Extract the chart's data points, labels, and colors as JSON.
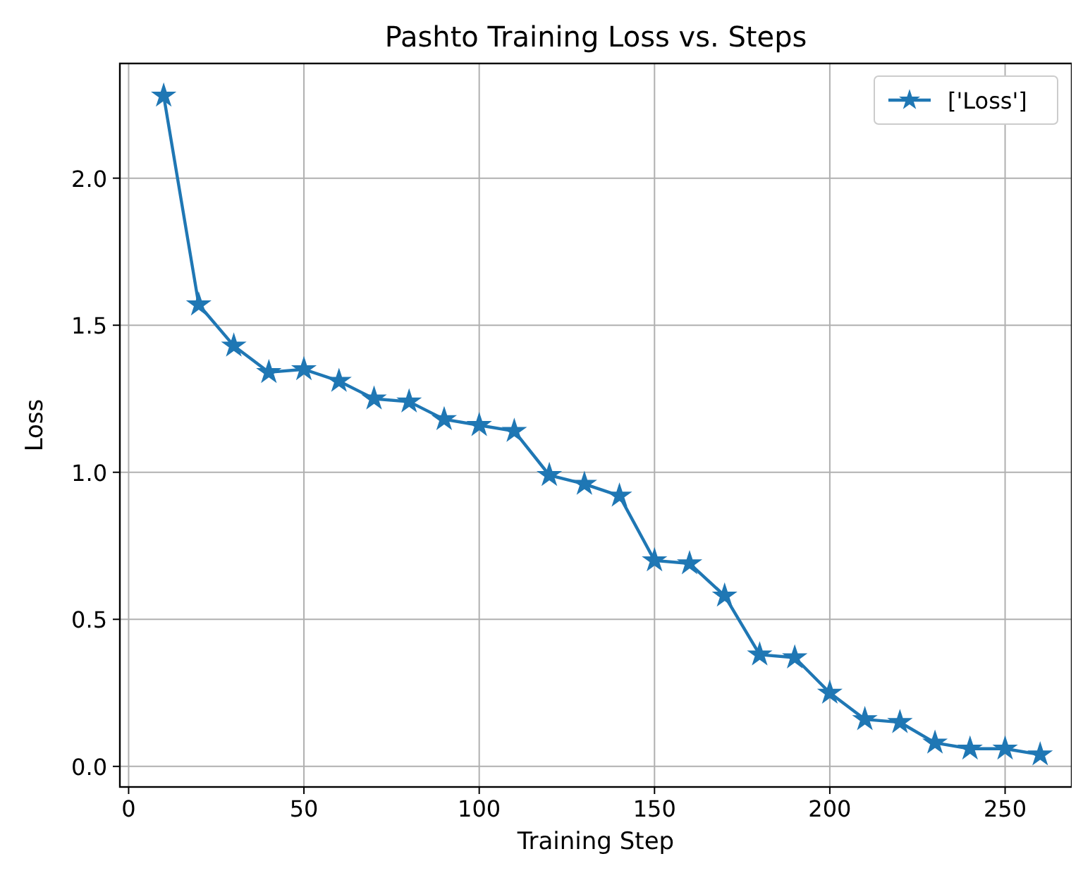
{
  "chart_data": {
    "type": "line",
    "title": "Pashto Training Loss vs. Steps",
    "xlabel": "Training Step",
    "ylabel": "Loss",
    "x": [
      10,
      20,
      30,
      40,
      50,
      60,
      70,
      80,
      90,
      100,
      110,
      120,
      130,
      140,
      150,
      160,
      170,
      180,
      190,
      200,
      210,
      220,
      230,
      240,
      250,
      260
    ],
    "series": [
      {
        "name": "['Loss']",
        "color": "#1f77b4",
        "values": [
          2.28,
          1.57,
          1.43,
          1.34,
          1.35,
          1.31,
          1.25,
          1.24,
          1.18,
          1.16,
          1.14,
          0.99,
          0.96,
          0.92,
          0.7,
          0.69,
          0.58,
          0.38,
          0.37,
          0.25,
          0.16,
          0.15,
          0.08,
          0.06,
          0.06,
          0.04
        ]
      }
    ],
    "xlim": [
      -2.5,
      269
    ],
    "ylim": [
      -0.07,
      2.39
    ],
    "xticks": [
      0,
      50,
      100,
      150,
      200,
      250
    ],
    "yticks": [
      {
        "value": 0,
        "label": "0.0"
      },
      {
        "value": 0.5,
        "label": "0.5"
      },
      {
        "value": 1,
        "label": "1.0"
      },
      {
        "value": 1.5,
        "label": "1.5"
      },
      {
        "value": 2,
        "label": "2.0"
      }
    ],
    "grid": true,
    "legend": "top right",
    "marker": "star",
    "line_style": "solid"
  }
}
